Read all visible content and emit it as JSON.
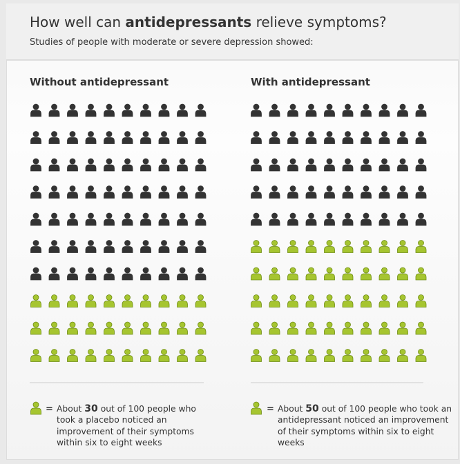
{
  "header": {
    "title_start": "How well can",
    "title_bold": "antidepressants",
    "title_end": "relieve symptoms?",
    "subtitle": "Studies of people with moderate or severe depression showed:"
  },
  "panels": [
    {
      "heading": "Without antidepressant",
      "total": 100,
      "improved": 30,
      "legend": {
        "about": "About",
        "out_of": "out of",
        "rest": "people who took a placebo noticed  an improvement of their symptoms within six to eight weeks",
        "equals": "="
      }
    },
    {
      "heading": "With antidepressant",
      "total": 100,
      "improved": 50,
      "legend": {
        "about": "About",
        "out_of": "out of",
        "rest": "people who took an antidepressant noticed an improvement of their symptoms within six to eight weeks",
        "equals": "="
      }
    }
  ],
  "colors": {
    "not_improved": "#333333",
    "improved": "#a6c530",
    "improved_outline": "#6e8c14"
  }
}
